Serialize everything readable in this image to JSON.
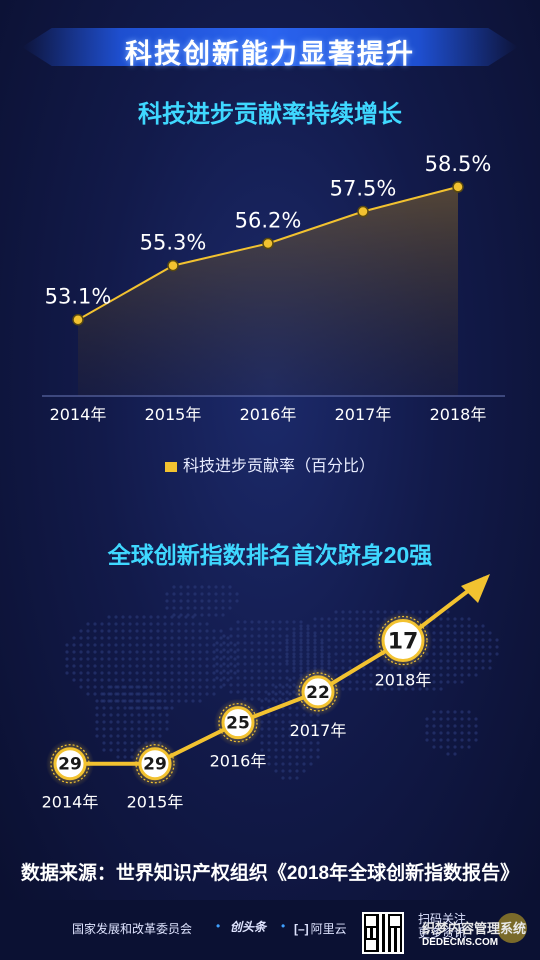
{
  "header": {
    "title": "科技创新能力显著提升"
  },
  "section1": {
    "title": "科技进步贡献率持续增长",
    "legend": "科技进步贡献率（百分比）"
  },
  "section2": {
    "title": "全球创新指数排名首次跻身20强"
  },
  "source": "数据来源：世界知识产权组织《2018年全球创新指数报告》",
  "footer": {
    "org": "国家发展和改革委员会",
    "dot": "•",
    "logo1": "创头条",
    "logo2_bracket": "[–]",
    "logo2": "阿里云",
    "scan_line1": "扫码关注",
    "scan_line2": "更多资讯",
    "watermark_line1": "织梦内容管理系统",
    "watermark_line2": "DEDECMS.COM"
  },
  "colors": {
    "accent": "#f2c230",
    "title_cyan": "#3fd8ff",
    "banner_blue": "#2a63ef"
  },
  "chart_data": [
    {
      "type": "area",
      "title": "科技进步贡献率持续增长",
      "categories": [
        "2014年",
        "2015年",
        "2016年",
        "2017年",
        "2018年"
      ],
      "series": [
        {
          "name": "科技进步贡献率（百分比）",
          "values": [
            53.1,
            55.3,
            56.2,
            57.5,
            58.5
          ]
        }
      ],
      "value_labels": [
        "53.1%",
        "55.3%",
        "56.2%",
        "57.5%",
        "58.5%"
      ],
      "ylim": [
        50,
        60
      ],
      "legend": "bottom",
      "grid": false
    },
    {
      "type": "line",
      "title": "全球创新指数排名首次跻身20强",
      "categories": [
        "2014年",
        "2015年",
        "2016年",
        "2017年",
        "2018年"
      ],
      "series": [
        {
          "values": [
            29,
            29,
            25,
            22,
            17
          ]
        }
      ],
      "rank_labels": [
        "29",
        "29",
        "25",
        "22",
        "17"
      ]
    }
  ]
}
